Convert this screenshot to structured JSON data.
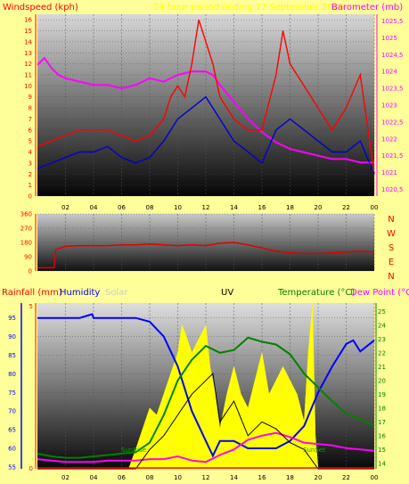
{
  "headers": {
    "windspeed": "Windspeed (kph)",
    "period": "24 hour period ending 17 September 2009",
    "barometer": "Barometer (mb)",
    "rainfall": "Rainfall (mm)",
    "humidity": "Humidity",
    "solar": "Solar",
    "uv": "UV",
    "temperature": "Temperature (°C)",
    "dewpoint": "Dew Point (°C"
  },
  "compass": [
    "N",
    "W",
    "S",
    "E",
    "N"
  ],
  "annotations": {
    "sunrise": "SunRise",
    "sunset": "SunSet"
  },
  "colors": {
    "background": "#ffff99",
    "windspeed": "#ff0000",
    "windavg": "#0000cc",
    "barometer": "#ff00ff",
    "winddir": "#e00000",
    "humidity": "#0000ff",
    "solar": "#ffff00",
    "uv": "#000000",
    "temperature": "#008000",
    "dewpoint": "#ff00ff",
    "rain": "#ff0000"
  },
  "chart_data": [
    {
      "type": "line",
      "title": "24 hour period ending 17 September 2009",
      "x_ticks": [
        "02",
        "04",
        "06",
        "08",
        "10",
        "12",
        "14",
        "16",
        "18",
        "20",
        "22",
        "00"
      ],
      "y_left_label": "Windspeed (kph)",
      "y_left_ticks": [
        "0",
        "1",
        "2",
        "3",
        "4",
        "5",
        "6",
        "7",
        "8",
        "9",
        "10",
        "11",
        "12",
        "13",
        "14",
        "15",
        "16"
      ],
      "ylim_left": [
        0,
        16.5
      ],
      "y_right_label": "Barometer (mb)",
      "y_right_ticks": [
        "1020,5",
        "1021",
        "1021,5",
        "1022",
        "1022,5",
        "1023",
        "1023,5",
        "1024",
        "1024,5",
        "1025",
        "1025,5"
      ],
      "ylim_right": [
        1020.3,
        1025.7
      ],
      "series": [
        {
          "name": "Barometer",
          "axis": "right",
          "x": [
            0,
            0.5,
            1,
            1.5,
            2,
            3,
            4,
            5,
            6,
            7,
            8,
            9,
            10,
            11,
            12,
            12.5,
            13,
            14,
            15,
            16,
            17,
            18,
            19,
            20,
            21,
            22,
            23,
            24
          ],
          "values": [
            1024.2,
            1024.4,
            1024.1,
            1023.9,
            1023.8,
            1023.7,
            1023.6,
            1023.6,
            1023.5,
            1023.6,
            1023.8,
            1023.7,
            1023.9,
            1024.0,
            1024.0,
            1023.9,
            1023.6,
            1023.1,
            1022.6,
            1022.2,
            1021.9,
            1021.7,
            1021.6,
            1021.5,
            1021.4,
            1021.4,
            1021.3,
            1021.3
          ]
        },
        {
          "name": "Windspeed",
          "axis": "left",
          "x": [
            0,
            1,
            2,
            3,
            4,
            5,
            6,
            7,
            8,
            9,
            9.5,
            10,
            10.5,
            11,
            11.5,
            12,
            12.5,
            13,
            14,
            15,
            16,
            17,
            17.5,
            18,
            19,
            20,
            21,
            22,
            23,
            24
          ],
          "values": [
            4.5,
            5,
            5.5,
            6,
            6,
            6,
            5.5,
            5,
            5.5,
            7,
            9,
            10,
            9,
            12,
            16,
            14,
            12,
            9,
            7,
            6,
            6,
            11,
            15,
            12,
            10,
            8,
            6,
            8,
            11,
            2
          ]
        },
        {
          "name": "Average",
          "axis": "left",
          "x": [
            0,
            1,
            2,
            3,
            4,
            5,
            6,
            7,
            8,
            9,
            10,
            11,
            12,
            13,
            14,
            15,
            16,
            17,
            18,
            19,
            20,
            21,
            22,
            23,
            24
          ],
          "values": [
            2.5,
            3,
            3.5,
            4,
            4,
            4.5,
            3.5,
            3,
            3.5,
            5,
            7,
            8,
            9,
            7,
            5,
            4,
            3,
            6,
            7,
            6,
            5,
            4,
            4,
            5,
            2
          ]
        }
      ]
    },
    {
      "type": "line",
      "y_ticks": [
        "0",
        "90",
        "180",
        "270",
        "360"
      ],
      "ylim": [
        0,
        360
      ],
      "compass": [
        "N",
        "W",
        "S",
        "E",
        "N"
      ],
      "series": [
        {
          "name": "Wind direction",
          "x": [
            0,
            1.2,
            1.3,
            2,
            3,
            4,
            5,
            6,
            7,
            8,
            9,
            10,
            11,
            12,
            13,
            14,
            15,
            16,
            17,
            18,
            19,
            20,
            21,
            22,
            23,
            24
          ],
          "values": [
            20,
            20,
            135,
            155,
            160,
            160,
            160,
            165,
            165,
            170,
            165,
            160,
            165,
            160,
            175,
            180,
            165,
            145,
            125,
            115,
            110,
            110,
            115,
            120,
            125,
            120
          ]
        }
      ]
    },
    {
      "type": "line",
      "y_left_label": "Humidity",
      "y_left_ticks": [
        "55",
        "60",
        "65",
        "70",
        "75",
        "80",
        "85",
        "90",
        "95"
      ],
      "ylim_left": [
        54.5,
        99
      ],
      "y_right_label": "Temperature (°C)",
      "y_right_ticks": [
        "14",
        "15",
        "16",
        "17",
        "18",
        "19",
        "20",
        "21",
        "22",
        "23",
        "24",
        "25"
      ],
      "ylim_right": [
        13.6,
        25.6
      ],
      "rain_ticks": [
        "0",
        "5"
      ],
      "x_ticks": [
        "02",
        "04",
        "06",
        "08",
        "10",
        "12",
        "14",
        "16",
        "18",
        "20",
        "22",
        "00"
      ],
      "series": [
        {
          "name": "Humidity",
          "axis": "left",
          "x": [
            0,
            2,
            3,
            3.9,
            4,
            7,
            8,
            9,
            10,
            11,
            12,
            12.5,
            13,
            14,
            15,
            16,
            17,
            18,
            19,
            20,
            21,
            22,
            22.5,
            23,
            24
          ],
          "values": [
            95,
            95,
            95,
            96,
            95,
            95,
            94,
            90,
            82,
            70,
            62,
            58,
            62,
            62,
            60,
            60,
            60,
            62,
            66,
            75,
            82,
            88,
            89,
            86,
            89
          ]
        },
        {
          "name": "Temperature",
          "axis": "right",
          "x": [
            0,
            1,
            2,
            3,
            4,
            5,
            6,
            7,
            8,
            9,
            10,
            11,
            12,
            13,
            14,
            15,
            16,
            17,
            18,
            19,
            20,
            21,
            22,
            23,
            24
          ],
          "values": [
            14.7,
            14.5,
            14.4,
            14.4,
            14.5,
            14.6,
            14.7,
            14.8,
            15.5,
            17.5,
            20,
            21.5,
            22.5,
            22.0,
            22.2,
            23.1,
            22.8,
            22.6,
            21.9,
            20.5,
            19.5,
            18.5,
            17.6,
            17.2,
            16.7
          ]
        },
        {
          "name": "Dew Point",
          "axis": "right",
          "x": [
            0,
            1,
            2,
            3,
            4,
            5,
            6,
            7,
            8,
            9,
            10,
            11,
            12,
            13,
            14,
            15,
            16,
            17,
            18,
            19,
            20,
            21,
            22,
            23,
            24
          ],
          "values": [
            14.3,
            14.2,
            14.1,
            14.1,
            14.1,
            14.2,
            14.2,
            14.2,
            14.3,
            14.3,
            14.5,
            14.2,
            14.1,
            14.6,
            15.0,
            15.7,
            16.0,
            16.2,
            15.9,
            15.5,
            15.4,
            15.3,
            15.1,
            15.0,
            14.9
          ]
        },
        {
          "name": "UV",
          "axis": "right",
          "x": [
            0,
            6,
            7,
            8,
            9,
            10,
            11,
            12,
            12.5,
            13,
            14,
            15,
            16,
            17,
            18,
            19,
            20,
            24
          ],
          "values": [
            13.6,
            13.6,
            13.6,
            15,
            16,
            17.5,
            19,
            20,
            20.5,
            17,
            18.5,
            16,
            17,
            16.5,
            15.5,
            15,
            13.6,
            13.6
          ]
        },
        {
          "name": "Solar",
          "axis": "right",
          "x": [
            6.5,
            7,
            7.5,
            8,
            8.5,
            9,
            9.5,
            10,
            10.3,
            10.5,
            11,
            11.5,
            12,
            12.3,
            12.6,
            13,
            13.5,
            14,
            14.5,
            15,
            15.5,
            16,
            16.5,
            17,
            17.5,
            18,
            18.5,
            19,
            19.3,
            19.6,
            19.8,
            20
          ],
          "values": [
            13.6,
            15,
            16.5,
            18,
            17.5,
            19,
            20.5,
            22,
            24,
            23.5,
            22,
            23,
            24,
            21,
            19.5,
            16.5,
            19,
            21,
            19,
            18,
            20,
            22,
            19,
            20,
            21,
            20,
            19,
            17,
            22,
            25.5,
            16,
            13.6
          ]
        }
      ]
    }
  ]
}
